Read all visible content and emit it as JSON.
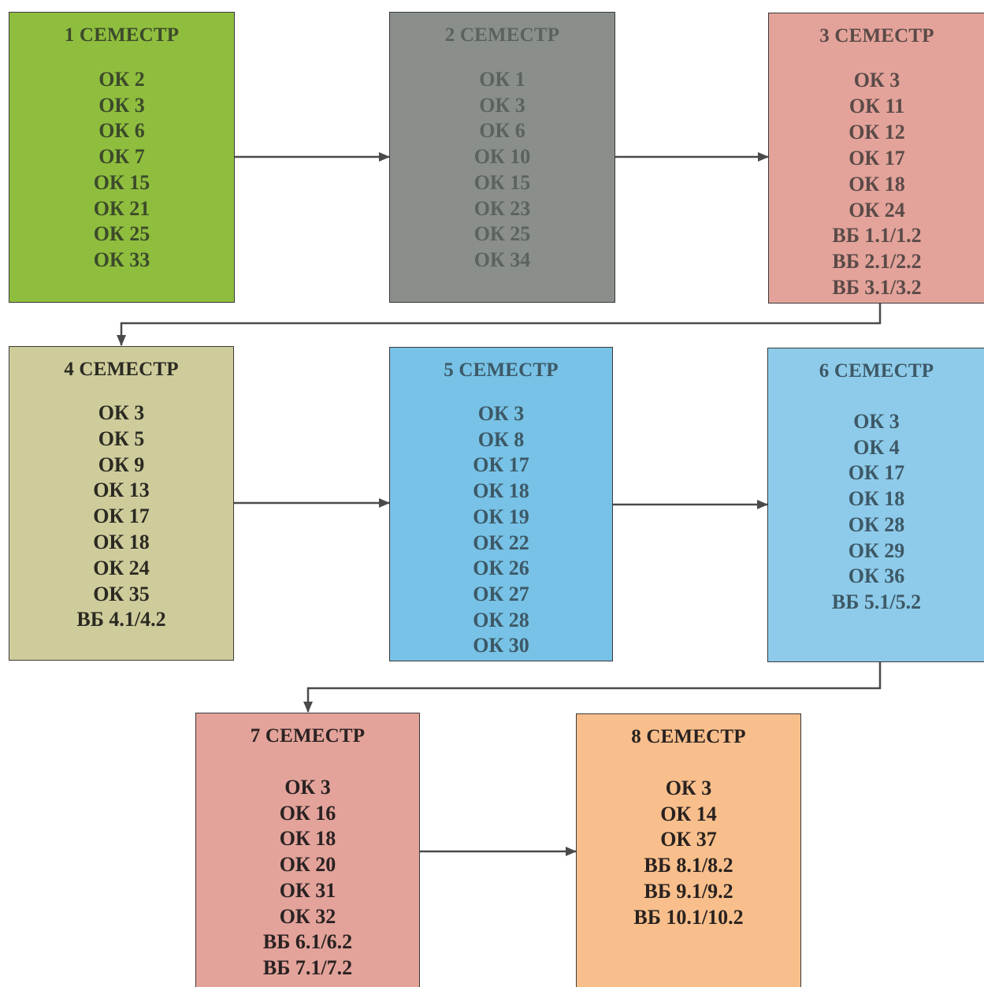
{
  "semesters": [
    {
      "title": "1 СЕМЕСТР",
      "color": "#8fbe3e",
      "text_color": "#3c4a2a",
      "items": [
        "ОК 2",
        "ОК 3",
        "ОК 6",
        "ОК 7",
        "ОК 15",
        "ОК 21",
        "ОК 25",
        "ОК 33"
      ]
    },
    {
      "title": "2 СЕМЕСТР",
      "color": "#8a8f8b",
      "text_color": "#5c625e",
      "items": [
        "ОК 1",
        "ОК 3",
        "ОК 6",
        "ОК 10",
        "ОК 15",
        "ОК 23",
        "ОК 25",
        "ОК 34"
      ]
    },
    {
      "title": "3 СЕМЕСТР",
      "color": "#e3a39a",
      "text_color": "#5a4a48",
      "items": [
        "ОК 3",
        "ОК 11",
        "ОК 12",
        "ОК 17",
        "ОК 18",
        "ОК 24",
        "ВБ 1.1/1.2",
        "ВБ 2.1/2.2",
        "ВБ 3.1/3.2"
      ]
    },
    {
      "title": "4 СЕМЕСТР",
      "color": "#cfcc9c",
      "text_color": "#2a2a22",
      "items": [
        "ОК 3",
        "ОК 5",
        "ОК 9",
        "ОК 13",
        "ОК 17",
        "ОК 18",
        "ОК 24",
        "ОК 35",
        "ВБ 4.1/4.2"
      ]
    },
    {
      "title": "5 СЕМЕСТР",
      "color": "#77c2e6",
      "text_color": "#3d5866",
      "items": [
        "ОК 3",
        "ОК 8",
        "ОК 17",
        "ОК 18",
        "ОК 19",
        "ОК 22",
        "ОК 26",
        "ОК 27",
        "ОК 28",
        "ОК 30"
      ]
    },
    {
      "title": "6 СЕМЕСТР",
      "color": "#8ecbea",
      "text_color": "#3d5866",
      "items": [
        "ОК 3",
        "ОК 4",
        "ОК 17",
        "ОК 18",
        "ОК 28",
        "ОК 29",
        "ОК 36",
        "ВБ 5.1/5.2"
      ]
    },
    {
      "title": "7 СЕМЕСТР",
      "color": "#e3a39a",
      "text_color": "#2a2222",
      "items": [
        "ОК 3",
        "ОК 16",
        "ОК 18",
        "ОК 20",
        "ОК 31",
        "ОК 32",
        "ВБ 6.1/6.2",
        "ВБ 7.1/7.2"
      ]
    },
    {
      "title": "8 СЕМЕСТР",
      "color": "#f8bf8c",
      "text_color": "#2a2220",
      "items": [
        "ОК 3",
        "ОК 14",
        "ОК 37",
        "ВБ 8.1/8.2",
        "ВБ 9.1/9.2",
        "ВБ 10.1/10.2"
      ]
    }
  ],
  "arrow_color": "#4a4a4a"
}
